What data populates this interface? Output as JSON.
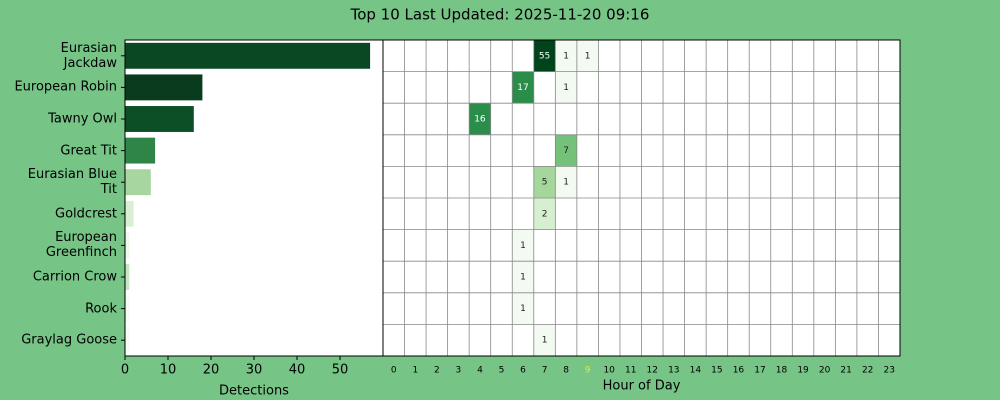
{
  "title": "Top 10 Last Updated: 2025-11-20 09:16",
  "chart_data": [
    {
      "type": "bar",
      "orientation": "horizontal",
      "categories": [
        "Eurasian Jackdaw",
        "European Robin",
        "Tawny Owl",
        "Great Tit",
        "Eurasian Blue Tit",
        "Goldcrest",
        "European Greenfinch",
        "Carrion Crow",
        "Rook",
        "Graylag Goose"
      ],
      "values": [
        57,
        18,
        16,
        7,
        6,
        2,
        1,
        1,
        1,
        1
      ],
      "colors": [
        "#0a4823",
        "#093b1e",
        "#0c4e26",
        "#2f8548",
        "#a8d6a0",
        "#d9efd4",
        "#eef8eb",
        "#c8e6c2",
        "#f5fbf3",
        "#f7fcf5"
      ],
      "xlabel": "Detections",
      "xlim": [
        0,
        60
      ],
      "xticks": [
        0,
        10,
        20,
        30,
        40,
        50
      ]
    },
    {
      "type": "heatmap",
      "xlabel": "Hour of Day",
      "categories": [
        0,
        1,
        2,
        3,
        4,
        5,
        6,
        7,
        8,
        9,
        10,
        11,
        12,
        13,
        14,
        15,
        16,
        17,
        18,
        19,
        20,
        21,
        22,
        23
      ],
      "highlight_category": 9,
      "highlight_color": "#e8e830",
      "rows": [
        {
          "cells": [
            {
              "hour": 7,
              "value": 55,
              "color": "#00441b"
            },
            {
              "hour": 8,
              "value": 1,
              "color": "#f3faf1"
            },
            {
              "hour": 9,
              "value": 1,
              "color": "#f3faf1"
            }
          ]
        },
        {
          "cells": [
            {
              "hour": 6,
              "value": 17,
              "color": "#2a8e4a"
            },
            {
              "hour": 8,
              "value": 1,
              "color": "#f3faf1"
            }
          ]
        },
        {
          "cells": [
            {
              "hour": 4,
              "value": 16,
              "color": "#2a8e4a"
            }
          ]
        },
        {
          "cells": [
            {
              "hour": 8,
              "value": 7,
              "color": "#74c17a"
            }
          ]
        },
        {
          "cells": [
            {
              "hour": 7,
              "value": 5,
              "color": "#a5d79d"
            },
            {
              "hour": 8,
              "value": 1,
              "color": "#f3faf1"
            }
          ]
        },
        {
          "cells": [
            {
              "hour": 7,
              "value": 2,
              "color": "#d7efd1"
            }
          ]
        },
        {
          "cells": [
            {
              "hour": 6,
              "value": 1,
              "color": "#f3faf1"
            }
          ]
        },
        {
          "cells": [
            {
              "hour": 6,
              "value": 1,
              "color": "#f3faf1"
            }
          ]
        },
        {
          "cells": [
            {
              "hour": 6,
              "value": 1,
              "color": "#f3faf1"
            }
          ]
        },
        {
          "cells": [
            {
              "hour": 7,
              "value": 1,
              "color": "#f3faf1"
            }
          ]
        }
      ]
    }
  ]
}
